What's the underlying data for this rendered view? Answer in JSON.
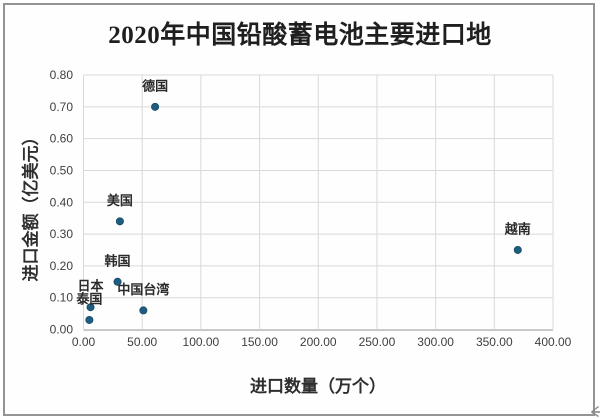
{
  "chart_box": {
    "border_color": "#949494",
    "background": "#fefefe"
  },
  "cursor": {
    "color": "#8a8a8a"
  },
  "chart_data": {
    "type": "scatter",
    "title": "2020年中国铅酸蓄电池主要进口地",
    "xlabel": "进口数量（万个）",
    "ylabel": "进口金额（亿美元）",
    "xlim": [
      0,
      400
    ],
    "ylim": [
      0,
      0.8
    ],
    "xtick_labels": [
      "0.00",
      "50.00",
      "100.00",
      "150.00",
      "200.00",
      "250.00",
      "300.00",
      "350.00",
      "400.00"
    ],
    "ytick_labels": [
      "0.00",
      "0.10",
      "0.20",
      "0.30",
      "0.40",
      "0.50",
      "0.60",
      "0.70",
      "0.80"
    ],
    "grid": true,
    "legend": "none",
    "marker_color": "#1e5d80",
    "marker_edge_color": "#164a66",
    "gridline_color": "#d9d9d9",
    "axis_line_color": "#bdbdbd",
    "points": [
      {
        "label": "德国",
        "x": 61,
        "y": 0.7
      },
      {
        "label": "美国",
        "x": 31,
        "y": 0.34
      },
      {
        "label": "韩国",
        "x": 29,
        "y": 0.15
      },
      {
        "label": "日本",
        "x": 6,
        "y": 0.07
      },
      {
        "label": "泰国",
        "x": 5,
        "y": 0.03
      },
      {
        "label": "中国台湾",
        "x": 51,
        "y": 0.06
      },
      {
        "label": "越南",
        "x": 370,
        "y": 0.25
      }
    ]
  }
}
